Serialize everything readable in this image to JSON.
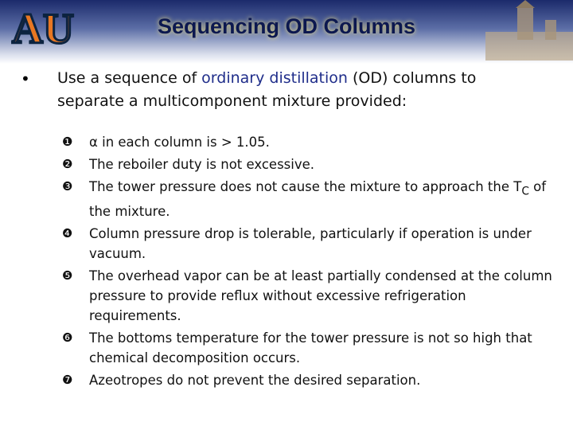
{
  "header": {
    "logo": "AU",
    "title": "Sequencing OD Columns"
  },
  "intro": {
    "bullet": "•",
    "before": "Use a sequence of ",
    "highlight": "ordinary distillation",
    "after": " (OD) columns to separate a multicomponent mixture provided:"
  },
  "items": [
    {
      "marker": "❶",
      "text": "α in each column is  > 1.05."
    },
    {
      "marker": "❷",
      "text": "The reboiler duty is not excessive."
    },
    {
      "marker": "❸",
      "text": "The tower pressure does not cause the mixture to approach the T",
      "sub": "C",
      "after": " of the mixture."
    },
    {
      "marker": "❹",
      "text": "Column pressure drop is tolerable, particularly if operation is under vacuum."
    },
    {
      "marker": "❺",
      "text": "The overhead vapor can be at least partially condensed at the column pressure to provide reflux without excessive refrigeration requirements."
    },
    {
      "marker": "❻",
      "text": "The bottoms temperature for the tower pressure is not so high that chemical decomposition occurs."
    },
    {
      "marker": "❼",
      "text": "Azeotropes do not prevent the desired separation."
    }
  ]
}
